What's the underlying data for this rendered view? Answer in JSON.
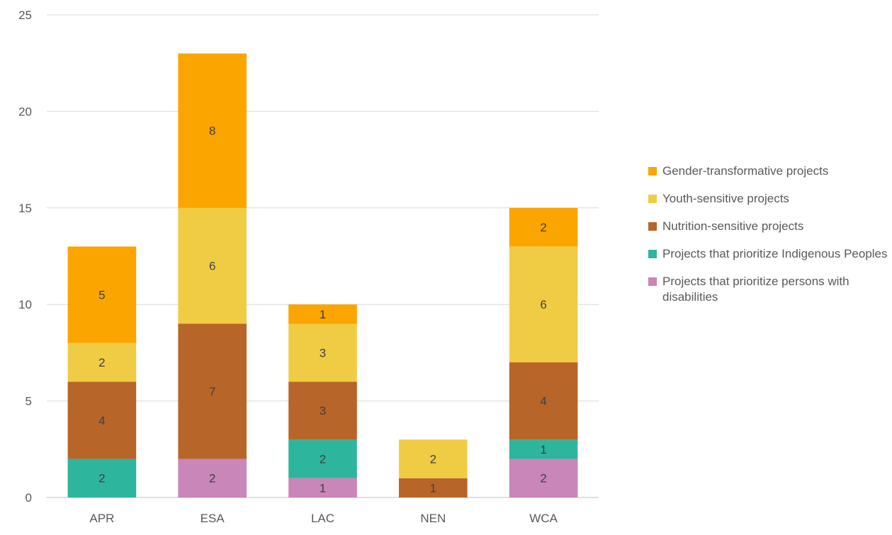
{
  "chart_data": {
    "type": "bar",
    "stacked": true,
    "categories": [
      "APR",
      "ESA",
      "LAC",
      "NEN",
      "WCA"
    ],
    "ylim": [
      0,
      25
    ],
    "yticks": [
      0,
      5,
      10,
      15,
      20,
      25
    ],
    "grid": true,
    "legend_position": "right",
    "series": [
      {
        "name": "Projects that prioritize persons with disabilities",
        "color": "#C986B8",
        "values": [
          0,
          2,
          1,
          0,
          2
        ]
      },
      {
        "name": "Projects that prioritize Indigenous Peoples",
        "color": "#2EB59D",
        "values": [
          2,
          0,
          2,
          0,
          1
        ]
      },
      {
        "name": "Nutrition-sensitive projects",
        "color": "#B8652A",
        "values": [
          4,
          7,
          3,
          1,
          4
        ]
      },
      {
        "name": "Youth-sensitive projects",
        "color": "#F0CC45",
        "values": [
          2,
          6,
          3,
          2,
          6
        ]
      },
      {
        "name": "Gender-transformative projects",
        "color": "#FAA500",
        "values": [
          5,
          8,
          1,
          0,
          2
        ]
      }
    ],
    "legend_order": [
      4,
      3,
      2,
      1,
      0
    ]
  }
}
